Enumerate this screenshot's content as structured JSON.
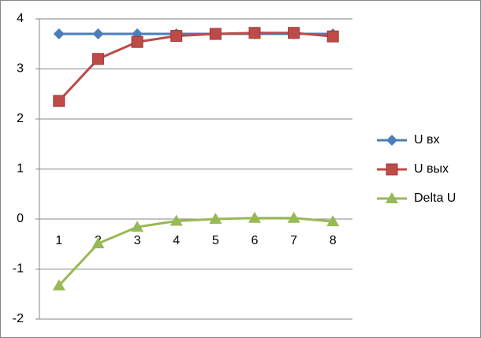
{
  "chart_data": {
    "type": "line",
    "categories": [
      "1",
      "2",
      "3",
      "4",
      "5",
      "6",
      "7",
      "8"
    ],
    "series": [
      {
        "name": "U вх",
        "color": "#4a7ebb",
        "marker": "diamond",
        "values": [
          3.7,
          3.7,
          3.7,
          3.7,
          3.7,
          3.7,
          3.7,
          3.7
        ]
      },
      {
        "name": "U вых",
        "color": "#be4b48",
        "marker": "square",
        "values": [
          2.36,
          3.2,
          3.54,
          3.66,
          3.7,
          3.72,
          3.72,
          3.65
        ]
      },
      {
        "name": "Delta U",
        "color": "#98b954",
        "marker": "triangle",
        "values": [
          -1.33,
          -0.49,
          -0.16,
          -0.04,
          0,
          0.02,
          0.02,
          -0.05
        ]
      }
    ],
    "ylim": [
      -2,
      4
    ],
    "yticks": [
      -2,
      -1,
      0,
      1,
      2,
      3,
      4
    ],
    "grid": true,
    "legend": "right"
  }
}
